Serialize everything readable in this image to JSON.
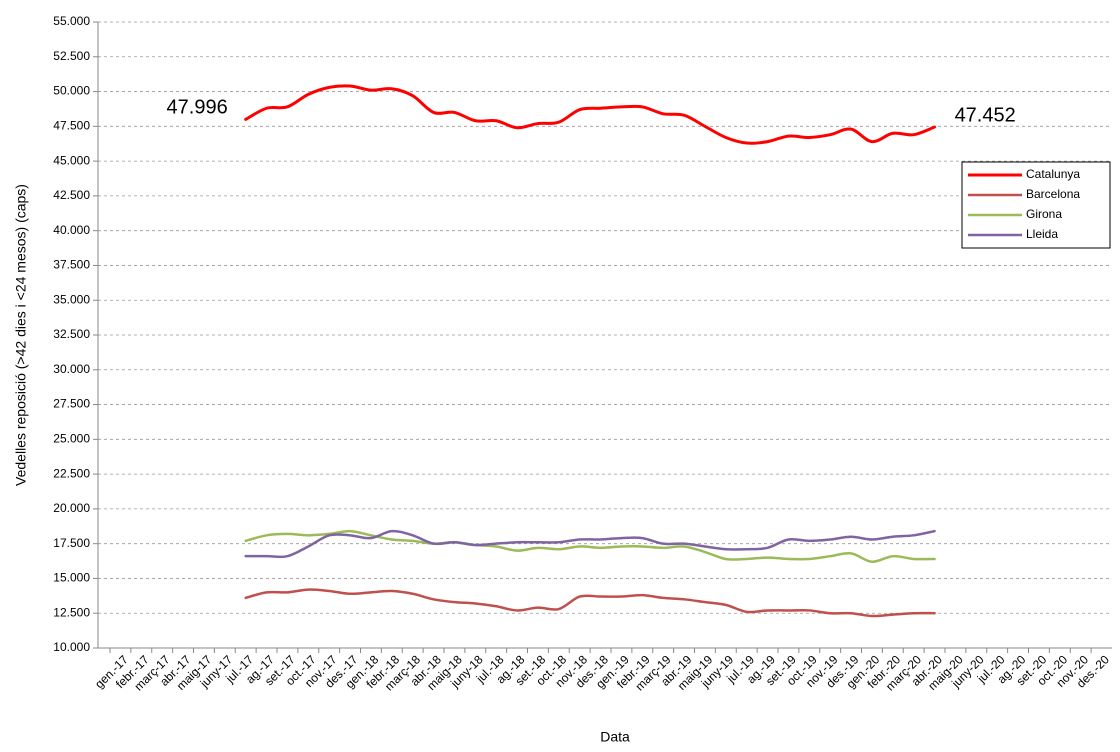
{
  "chart_data": {
    "type": "line",
    "y_label": "Vedelles reposició (>42 dies  i <24 mesos) (caps)",
    "x_label": "Data",
    "categories": [
      "gen.-17",
      "febr.-17",
      "març-17",
      "abr.-17",
      "maig-17",
      "juny-17",
      "jul.-17",
      "ag.-17",
      "set.-17",
      "oct.-17",
      "nov.-17",
      "des.-17",
      "gen.-18",
      "febr.-18",
      "març-18",
      "abr.-18",
      "maig-18",
      "juny-18",
      "jul.-18",
      "ag.-18",
      "set.-18",
      "oct.-18",
      "nov.-18",
      "des.-18",
      "gen.-19",
      "febr.-19",
      "març-19",
      "abr.-19",
      "maig-19",
      "juny-19",
      "jul.-19",
      "ag.-19",
      "set.-19",
      "oct.-19",
      "nov.-19",
      "des.-19",
      "gen.-20",
      "febr.-20",
      "març-20",
      "abr.-20",
      "maig-20",
      "juny-20",
      "jul.-20",
      "ag.-20",
      "set.-20",
      "oct.-20",
      "nov.-20",
      "des.-20"
    ],
    "series": [
      {
        "name": "Catalunya",
        "color": "#ff0000",
        "width": 3,
        "values": [
          null,
          null,
          null,
          null,
          null,
          null,
          47996,
          48800,
          48900,
          49800,
          50300,
          50400,
          50100,
          50200,
          49700,
          48500,
          48500,
          47900,
          47900,
          47400,
          47700,
          47800,
          48700,
          48800,
          48900,
          48900,
          48400,
          48300,
          47500,
          46700,
          46300,
          46400,
          46800,
          46700,
          46900,
          47300,
          46400,
          47000,
          46900,
          47452,
          null,
          null,
          null,
          null,
          null,
          null,
          null,
          null
        ],
        "value_labels": [
          null,
          null,
          null,
          null,
          null,
          null,
          "47.996",
          null,
          null,
          null,
          null,
          null,
          null,
          null,
          null,
          null,
          null,
          null,
          null,
          null,
          null,
          null,
          null,
          null,
          null,
          null,
          null,
          null,
          null,
          null,
          null,
          null,
          null,
          null,
          null,
          null,
          null,
          null,
          null,
          "47.452",
          null,
          null,
          null,
          null,
          null,
          null,
          null,
          null
        ]
      },
      {
        "name": "Barcelona",
        "color": "#c0504d",
        "width": 2.5,
        "values": [
          null,
          null,
          null,
          null,
          null,
          null,
          13600,
          14000,
          14000,
          14200,
          14100,
          13900,
          14000,
          14100,
          13900,
          13500,
          13300,
          13200,
          13000,
          12700,
          12900,
          12800,
          13700,
          13700,
          13700,
          13800,
          13600,
          13500,
          13300,
          13100,
          12600,
          12700,
          12700,
          12700,
          12500,
          12500,
          12300,
          12400,
          12500,
          12500,
          null,
          null,
          null,
          null,
          null,
          null,
          null,
          null
        ]
      },
      {
        "name": "Girona",
        "color": "#9bbb59",
        "width": 2.5,
        "values": [
          null,
          null,
          null,
          null,
          null,
          null,
          17700,
          18100,
          18200,
          18100,
          18200,
          18400,
          18100,
          17800,
          17700,
          17500,
          17600,
          17400,
          17300,
          17000,
          17200,
          17100,
          17300,
          17200,
          17300,
          17300,
          17200,
          17300,
          16900,
          16400,
          16400,
          16500,
          16400,
          16400,
          16600,
          16800,
          16200,
          16600,
          16400,
          16400,
          null,
          null,
          null,
          null,
          null,
          null,
          null,
          null
        ]
      },
      {
        "name": "Lleida",
        "color": "#8064a2",
        "width": 2.5,
        "values": [
          null,
          null,
          null,
          null,
          null,
          null,
          16600,
          16600,
          16600,
          17300,
          18100,
          18100,
          17900,
          18400,
          18100,
          17500,
          17600,
          17400,
          17500,
          17600,
          17600,
          17600,
          17800,
          17800,
          17900,
          17900,
          17500,
          17500,
          17300,
          17100,
          17100,
          17200,
          17800,
          17700,
          17800,
          18000,
          17800,
          18000,
          18100,
          18400,
          null,
          null,
          null,
          null,
          null,
          null,
          null,
          null
        ]
      }
    ],
    "ylim": [
      10000,
      55000
    ],
    "yticks": [
      {
        "value": 10000,
        "label": "10.000"
      },
      {
        "value": 12500,
        "label": "12.500"
      },
      {
        "value": 15000,
        "label": "15.000"
      },
      {
        "value": 17500,
        "label": "17.500"
      },
      {
        "value": 20000,
        "label": "20.000"
      },
      {
        "value": 22500,
        "label": "22.500"
      },
      {
        "value": 25000,
        "label": "25.000"
      },
      {
        "value": 27500,
        "label": "27.500"
      },
      {
        "value": 30000,
        "label": "30.000"
      },
      {
        "value": 32500,
        "label": "32.500"
      },
      {
        "value": 35000,
        "label": "35.000"
      },
      {
        "value": 37500,
        "label": "37.500"
      },
      {
        "value": 40000,
        "label": "40.000"
      },
      {
        "value": 42500,
        "label": "42.500"
      },
      {
        "value": 45000,
        "label": "45.000"
      },
      {
        "value": 47500,
        "label": "47.500"
      },
      {
        "value": 50000,
        "label": "50.000"
      },
      {
        "value": 52500,
        "label": "52.500"
      },
      {
        "value": 55000,
        "label": "55.000"
      }
    ],
    "grid": true,
    "legend": "right"
  }
}
